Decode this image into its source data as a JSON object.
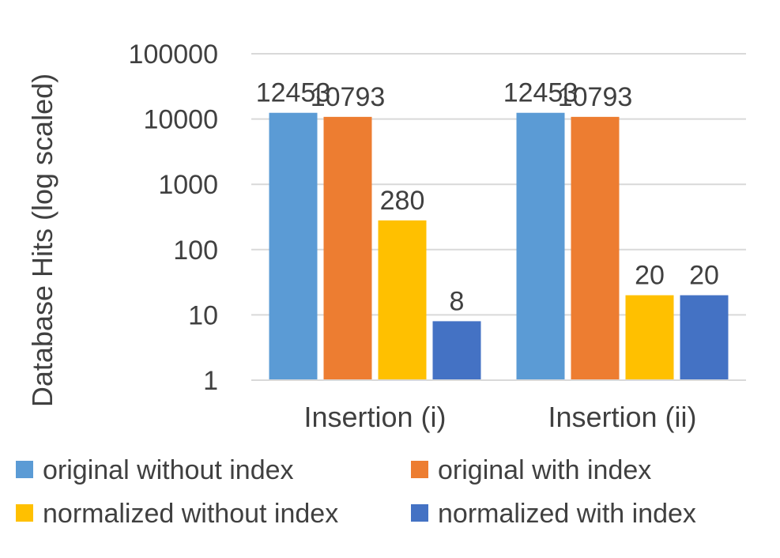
{
  "chart_data": {
    "type": "bar",
    "log_scale": true,
    "ylabel": "Database Hits (log scaled)",
    "xlabel": "",
    "ylim": [
      1,
      100000
    ],
    "ytick_values": [
      1,
      10,
      100,
      1000,
      10000,
      100000
    ],
    "ytick_labels": [
      "1",
      "10",
      "100",
      "1000",
      "10000",
      "100000"
    ],
    "grid": true,
    "legend_position": "bottom",
    "categories": [
      "Insertion (i)",
      "Insertion (ii)"
    ],
    "series": [
      {
        "name": "original without index",
        "values": [
          12453,
          12453
        ],
        "color": "#5B9BD5"
      },
      {
        "name": "original with index",
        "values": [
          10793,
          10793
        ],
        "color": "#ED7D31"
      },
      {
        "name": "normalized without index",
        "values": [
          280,
          20
        ],
        "color": "#FFC000"
      },
      {
        "name": "normalized with index",
        "values": [
          8,
          20
        ],
        "color": "#4472C4"
      }
    ],
    "data_labels": [
      [
        "12453",
        "12453"
      ],
      [
        "10793",
        "10793"
      ],
      [
        "280",
        "20"
      ],
      [
        "8",
        "20"
      ]
    ]
  }
}
